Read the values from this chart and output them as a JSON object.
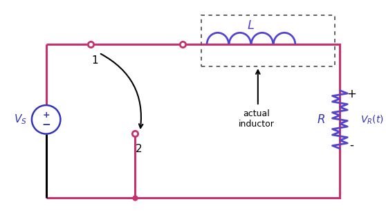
{
  "bg_color": "#ffffff",
  "wire_color": "#c8306e",
  "black_wire": "#000000",
  "blue_color": "#3333bb",
  "inductor_color": "#5544cc",
  "resistor_color": "#5544cc",
  "dashed_box_color": "#555555",
  "arrow_color": "#111111",
  "figsize": [
    5.58,
    3.21
  ],
  "dpi": 100,
  "xlim": [
    0,
    11
  ],
  "ylim": [
    0,
    6.5
  ]
}
